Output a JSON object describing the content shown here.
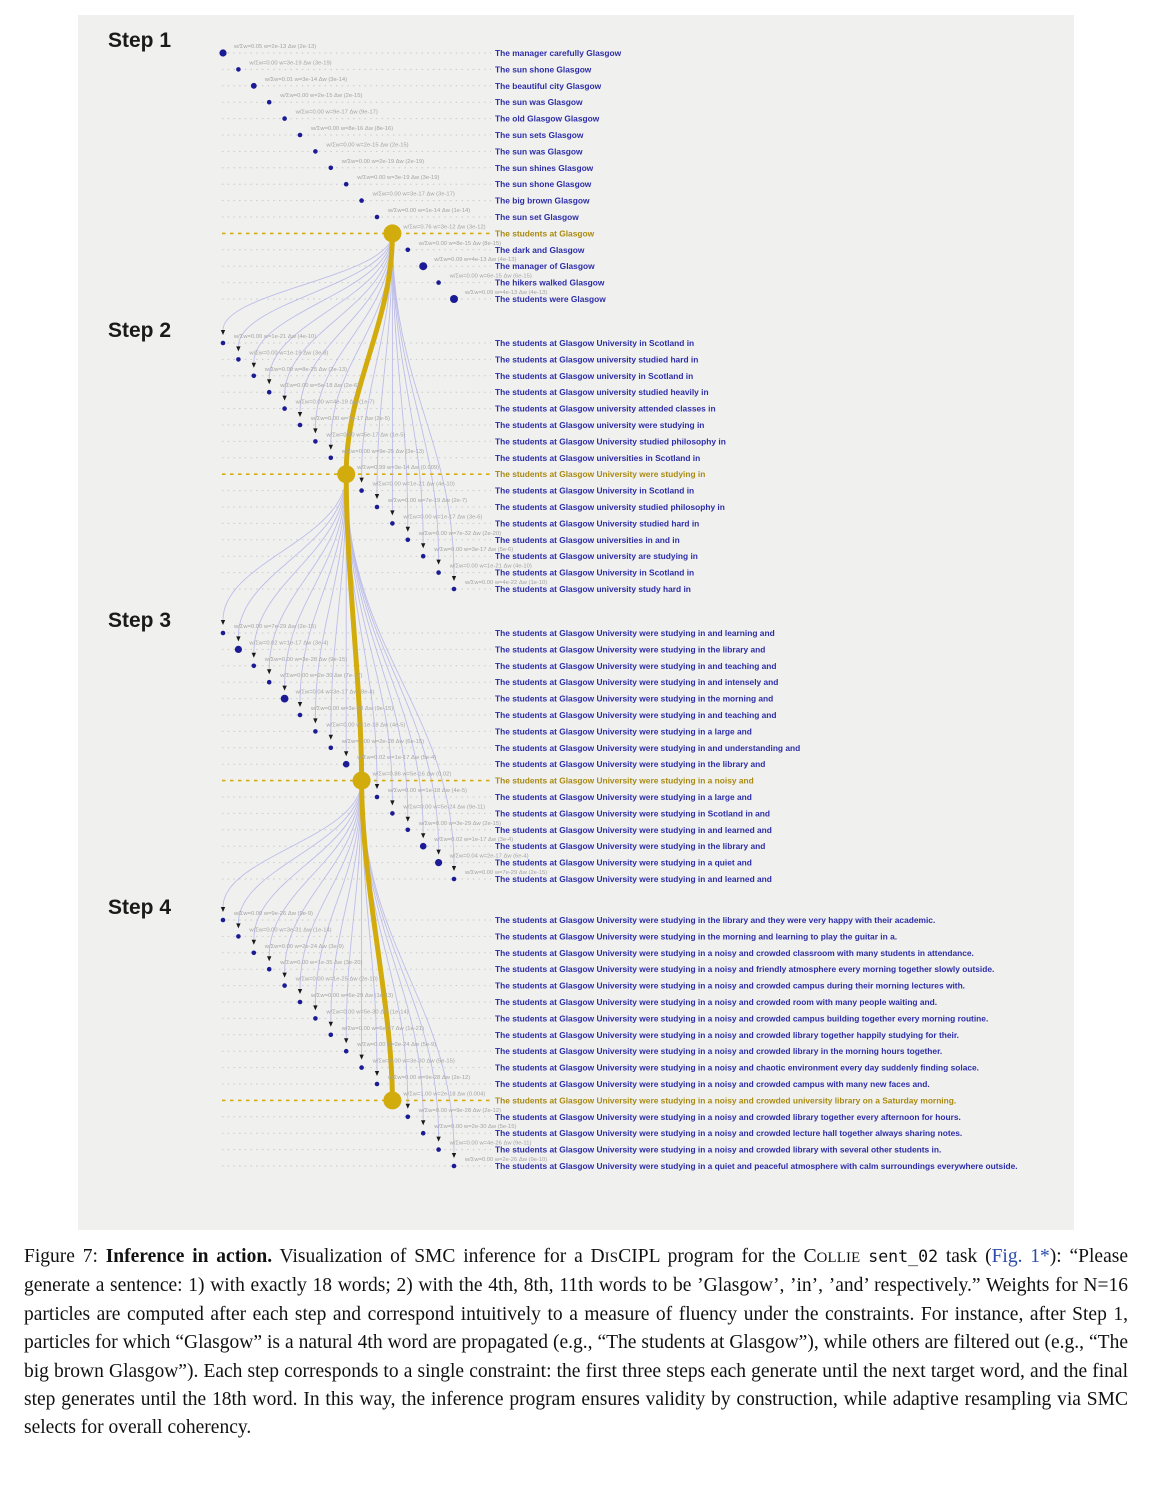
{
  "figure": {
    "colors": {
      "panel_background": "#f0f0ef",
      "particle_dot": "#1b1b96",
      "sentence_text": "#2d2da8",
      "selected_gold": "#d2ab0c",
      "selected_sentence_text": "#a98a10",
      "weight_label_text": "#a3a3a3",
      "leader_dots": "#c9c9c9",
      "lineage_curve": "#b5b5e8",
      "resample_arrow": "#1a1a1a"
    },
    "steps": [
      {
        "label": "Step 1",
        "selected_index": 11,
        "particles": [
          {
            "weight_label": "w/Σw=0.05 w=2e-13 Δw (2e-13)",
            "sentence": "The manager carefully Glasgow",
            "r": 3.6
          },
          {
            "weight_label": "w/Σw=0.00 w=3e-19 Δw (3e-19)",
            "sentence": "The sun shone Glasgow",
            "r": 2.3
          },
          {
            "weight_label": "w/Σw=0.01 w=3e-14 Δw (3e-14)",
            "sentence": "The beautiful city Glasgow",
            "r": 2.9
          },
          {
            "weight_label": "w/Σw=0.00 w=2e-15 Δw (2e-15)",
            "sentence": "The sun was Glasgow",
            "r": 2.3
          },
          {
            "weight_label": "w/Σw=0.00 w=9e-17 Δw (9e-17)",
            "sentence": "The old Glasgow Glasgow",
            "r": 2.3
          },
          {
            "weight_label": "w/Σw=0.00 w=8e-16 Δw (8e-16)",
            "sentence": "The sun sets Glasgow",
            "r": 2.3
          },
          {
            "weight_label": "w/Σw=0.00 w=2e-15 Δw (2e-15)",
            "sentence": "The sun was Glasgow",
            "r": 2.3
          },
          {
            "weight_label": "w/Σw=0.00 w=2e-19 Δw (2e-19)",
            "sentence": "The sun shines Glasgow",
            "r": 2.3
          },
          {
            "weight_label": "w/Σw=0.00 w=3e-19 Δw (3e-19)",
            "sentence": "The sun shone Glasgow",
            "r": 2.3
          },
          {
            "weight_label": "w/Σw=0.00 w=3e-17 Δw (3e-17)",
            "sentence": "The big brown Glasgow",
            "r": 2.3
          },
          {
            "weight_label": "w/Σw=0.00 w=1e-14 Δw (1e-14)",
            "sentence": "The sun set Glasgow",
            "r": 2.3
          },
          {
            "weight_label": "w/Σw=0.76 w=3e-12 Δw (3e-12)",
            "sentence": "The students at Glasgow",
            "r": 9
          },
          {
            "weight_label": "w/Σw=0.00 w=8e-15 Δw (8e-15)",
            "sentence": "The dark and Glasgow",
            "r": 2.3
          },
          {
            "weight_label": "w/Σw=0.09 w=4e-13 Δw (4e-13)",
            "sentence": "The manager of Glasgow",
            "r": 4
          },
          {
            "weight_label": "w/Σw=0.00 w=6e-15 Δw (6e-15)",
            "sentence": "The hikers walked Glasgow",
            "r": 2.3
          },
          {
            "weight_label": "w/Σw=0.09 w=4e-13 Δw (4e-13)",
            "sentence": "The students were Glasgow",
            "r": 4
          }
        ]
      },
      {
        "label": "Step 2",
        "selected_index": 8,
        "particles": [
          {
            "weight_label": "w/Σw=0.00 w=1e-21 Δw (4e-10)",
            "sentence": "The students at Glasgow University in Scotland in",
            "r": 2.3
          },
          {
            "weight_label": "w/Σw=0.00 w=1e-19 Δw (3e-8)",
            "sentence": "The students at Glasgow university studied hard in",
            "r": 2.3
          },
          {
            "weight_label": "w/Σw=0.00 w=8e-25 Δw (2e-13)",
            "sentence": "The students at Glasgow university in Scotland in",
            "r": 2.3
          },
          {
            "weight_label": "w/Σw=0.00 w=5e-18 Δw (2e-6)",
            "sentence": "The students at Glasgow university studied heavily in",
            "r": 2.3
          },
          {
            "weight_label": "w/Σw=0.00 w=4e-19 Δw (1e-7)",
            "sentence": "The students at Glasgow university attended classes in",
            "r": 2.3
          },
          {
            "weight_label": "w/Σw=0.00 w=7e-17 Δw (2e-5)",
            "sentence": "The students at Glasgow university were studying in",
            "r": 2.3
          },
          {
            "weight_label": "w/Σw=0.00 w=5e-17 Δw (1e-5)",
            "sentence": "The students at Glasgow University studied philosophy in",
            "r": 2.3
          },
          {
            "weight_label": "w/Σw=0.00 w=9e-25 Δw (3e-13)",
            "sentence": "The students at Glasgow universities in Scotland in",
            "r": 2.3
          },
          {
            "weight_label": "w/Σw=0.99 w=3e-14 Δw (0.009)",
            "sentence": "The students at Glasgow University were studying in",
            "r": 9
          },
          {
            "weight_label": "w/Σw=0.00 w=1e-21 Δw (4e-10)",
            "sentence": "The students at Glasgow University in Scotland in",
            "r": 2.3
          },
          {
            "weight_label": "w/Σw=0.00 w=7e-19 Δw (2e-7)",
            "sentence": "The students at Glasgow university studied philosophy in",
            "r": 2.3
          },
          {
            "weight_label": "w/Σw=0.00 w=1e-17 Δw (3e-6)",
            "sentence": "The students at Glasgow University studied hard in",
            "r": 2.3
          },
          {
            "weight_label": "w/Σw=0.00 w=7e-32 Δw (2e-20)",
            "sentence": "The students at Glasgow universities in and in",
            "r": 2.3
          },
          {
            "weight_label": "w/Σw=0.00 w=3e-17 Δw (5e-6)",
            "sentence": "The students at Glasgow university are studying in",
            "r": 2.3
          },
          {
            "weight_label": "w/Σw=0.00 w=1e-21 Δw (4e-10)",
            "sentence": "The students at Glasgow University in Scotland in",
            "r": 2.3
          },
          {
            "weight_label": "w/Σw=0.00 w=4e-22 Δw (1e-10)",
            "sentence": "The students at Glasgow university study hard in",
            "r": 2.3
          }
        ]
      },
      {
        "label": "Step 3",
        "selected_index": 9,
        "particles": [
          {
            "weight_label": "w/Σw=0.00 w=7e-29 Δw (2e-15)",
            "sentence": "The students at Glasgow University were studying in and learning and",
            "r": 2.3
          },
          {
            "weight_label": "w/Σw=0.02 w=1e-17 Δw (3e-4)",
            "sentence": "The students at Glasgow University were studying in the library and",
            "r": 3.6
          },
          {
            "weight_label": "w/Σw=0.00 w=3e-28 Δw (9e-15)",
            "sentence": "The students at Glasgow University were studying in and teaching and",
            "r": 2.3
          },
          {
            "weight_label": "w/Σw=0.00 w=2e-30 Δw (7e-17)",
            "sentence": "The students at Glasgow University were studying in and intensely and",
            "r": 2.3
          },
          {
            "weight_label": "w/Σw=0.04 w=3e-17 Δw (8e-4)",
            "sentence": "The students at Glasgow University were studying in the morning and",
            "r": 3.9
          },
          {
            "weight_label": "w/Σw=0.00 w=3e-28 Δw (9e-15)",
            "sentence": "The students at Glasgow University were studying in and teaching and",
            "r": 2.3
          },
          {
            "weight_label": "w/Σw=0.00 w=1e-18 Δw (4e-5)",
            "sentence": "The students at Glasgow University were studying in a large and",
            "r": 2.3
          },
          {
            "weight_label": "w/Σw=0.00 w=2e-28 Δw (6e-15)",
            "sentence": "The students at Glasgow University were studying in and understanding and",
            "r": 2.3
          },
          {
            "weight_label": "w/Σw=0.02 w=1e-17 Δw (5e-4)",
            "sentence": "The students at Glasgow University were studying in the library and",
            "r": 3.3
          },
          {
            "weight_label": "w/Σw=0.86 w=5e-16 Δw (0.02)",
            "sentence": "The students at Glasgow University were studying in a noisy and",
            "r": 9
          },
          {
            "weight_label": "w/Σw=0.00 w=1e-18 Δw (4e-5)",
            "sentence": "The students at Glasgow University were studying in a large and",
            "r": 2.3
          },
          {
            "weight_label": "w/Σw=0.00 w=5e-24 Δw (9e-11)",
            "sentence": "The students at Glasgow University were studying in Scotland in and",
            "r": 2.3
          },
          {
            "weight_label": "w/Σw=0.00 w=3e-29 Δw (2e-15)",
            "sentence": "The students at Glasgow University were studying in and learned and",
            "r": 2.3
          },
          {
            "weight_label": "w/Σw=0.02 w=1e-17 Δw (3e-4)",
            "sentence": "The students at Glasgow University were studying in the library and",
            "r": 3.3
          },
          {
            "weight_label": "w/Σw=0.04 w=2e-17 Δw (6e-4)",
            "sentence": "The students at Glasgow University were studying in a quiet and",
            "r": 3.6
          },
          {
            "weight_label": "w/Σw=0.00 w=7e-29 Δw (2e-15)",
            "sentence": "The students at Glasgow University were studying in and learned and",
            "r": 2.3
          }
        ]
      },
      {
        "label": "Step 4",
        "selected_index": 11,
        "particles": [
          {
            "weight_label": "w/Σw=0.00 w=9e-26 Δw (9e-9)",
            "sentence": "The students at Glasgow University were studying in the library and they were very happy with their academic.",
            "r": 2.3
          },
          {
            "weight_label": "w/Σw=0.00 w=3e-31 Δw (1e-14)",
            "sentence": "The students at Glasgow University were studying in the morning and learning to play the guitar in a.",
            "r": 2.3
          },
          {
            "weight_label": "w/Σw=0.00 w=2e-24 Δw (3e-9)",
            "sentence": "The students at Glasgow University were studying in a noisy and crowded classroom with many students in attendance.",
            "r": 2.3
          },
          {
            "weight_label": "w/Σw=0.00 w=1e-35 Δw (3e-20)",
            "sentence": "The students at Glasgow University were studying in a noisy and friendly atmosphere every morning together slowly outside.",
            "r": 2.3
          },
          {
            "weight_label": "w/Σw=0.00 w=1e-25 Δw (2e-10)",
            "sentence": "The students at Glasgow University were studying in a noisy and crowded campus during their morning lectures with.",
            "r": 2.3
          },
          {
            "weight_label": "w/Σw=0.00 w=6e-29 Δw (1e-13)",
            "sentence": "The students at Glasgow University were studying in a noisy and crowded room with many people waiting and.",
            "r": 2.3
          },
          {
            "weight_label": "w/Σw=0.00 w=5e-30 Δw (1e-14)",
            "sentence": "The students at Glasgow University were studying in a noisy and crowded campus building together every morning routine.",
            "r": 2.3
          },
          {
            "weight_label": "w/Σw=0.00 w=6e-37 Δw (1e-21)",
            "sentence": "The students at Glasgow University were studying in a noisy and crowded library together happily studying for their.",
            "r": 2.3
          },
          {
            "weight_label": "w/Σw=0.00 w=2e-24 Δw (5e-9)",
            "sentence": "The students at Glasgow University were studying in a noisy and crowded library in the morning hours together.",
            "r": 2.3
          },
          {
            "weight_label": "w/Σw=0.00 w=3e-30 Δw (5e-15)",
            "sentence": "The students at Glasgow University were studying in a noisy and chaotic environment every day suddenly finding solace.",
            "r": 2.3
          },
          {
            "weight_label": "w/Σw=0.00 w=9e-28 Δw (2e-12)",
            "sentence": "The students at Glasgow University were studying in a noisy and crowded campus with many new faces and.",
            "r": 2.3
          },
          {
            "weight_label": "w/Σw=1.00 w=2e-18 Δw (0.004)",
            "sentence": "The students at Glasgow University were studying in a noisy and crowded university library on a Saturday morning.",
            "r": 9
          },
          {
            "weight_label": "w/Σw=0.00 w=9e-28 Δw (2e-12)",
            "sentence": "The students at Glasgow University were studying in a noisy and crowded library together every afternoon for hours.",
            "r": 2.3
          },
          {
            "weight_label": "w/Σw=0.00 w=2e-30 Δw (5e-15)",
            "sentence": "The students at Glasgow University were studying in a noisy and crowded lecture hall together always sharing notes.",
            "r": 2.3
          },
          {
            "weight_label": "w/Σw=0.00 w=4e-26 Δw (9e-11)",
            "sentence": "The students at Glasgow University were studying in a noisy and crowded library with several other students in.",
            "r": 2.3
          },
          {
            "weight_label": "w/Σw=0.00 w=2e-26 Δw (9e-10)",
            "sentence": "The students at Glasgow University were studying in a quiet and peaceful atmosphere with calm surroundings everywhere outside.",
            "r": 2.3
          }
        ]
      }
    ]
  },
  "caption": {
    "segments": [
      {
        "text": "Figure 7: ",
        "style": "plain"
      },
      {
        "text": "Inference in action.",
        "style": "bold"
      },
      {
        "text": " Visualization of SMC inference for a D",
        "style": "plain"
      },
      {
        "text": "IS",
        "style": "sc"
      },
      {
        "text": "CIPL program for the C",
        "style": "plain"
      },
      {
        "text": "OLLIE",
        "style": "sc"
      },
      {
        "text": " ",
        "style": "plain"
      },
      {
        "text": "sent_02",
        "style": "mono"
      },
      {
        "text": " task (",
        "style": "plain"
      },
      {
        "text": "Fig. 1*",
        "style": "link"
      },
      {
        "text": "): “Please generate a sentence: 1) with exactly 18 words; 2) with the 4th, 8th, 11th words to be ’Glasgow’, ’in’, ’and’ respectively.” Weights for N=16 particles are computed after each step and correspond intuitively to a measure of fluency under the constraints. For instance, after Step 1, particles for which “Glasgow” is a natural 4th word are propagated (e.g., “The students at Glasgow”), while others are filtered out (e.g., “The big brown Glasgow”). Each step corresponds to a single constraint: the first three steps each generate until the next target word, and the final step generates until the 18th word. In this way, the inference program ensures validity by construction, while adaptive resampling via SMC selects for overall coherency.",
        "style": "plain"
      }
    ]
  }
}
